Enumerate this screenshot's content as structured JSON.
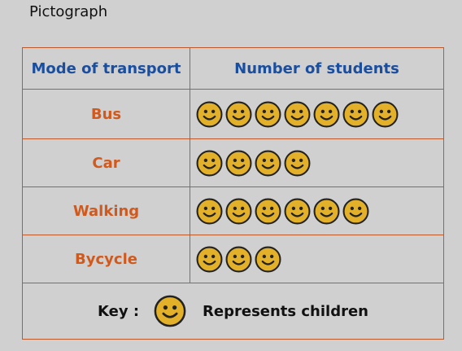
{
  "title": "Pictograph",
  "table": {
    "header_left": "Mode of transport",
    "header_right": "Number of students"
  },
  "key": {
    "label": "Key :",
    "text": "Represents children",
    "icon": "smiley-face-icon"
  },
  "colors": {
    "border": "#c0592a",
    "header_text": "#1a4fa0",
    "category_text": "#d05a1e",
    "smiley_fill": "#e3b02a",
    "smiley_outline": "#222222"
  },
  "chart_data": {
    "type": "table",
    "title": "Pictograph",
    "xlabel": "Mode of transport",
    "ylabel": "Number of students",
    "categories": [
      "Bus",
      "Car",
      "Walking",
      "Bycycle"
    ],
    "values": [
      7,
      4,
      6,
      3
    ]
  }
}
